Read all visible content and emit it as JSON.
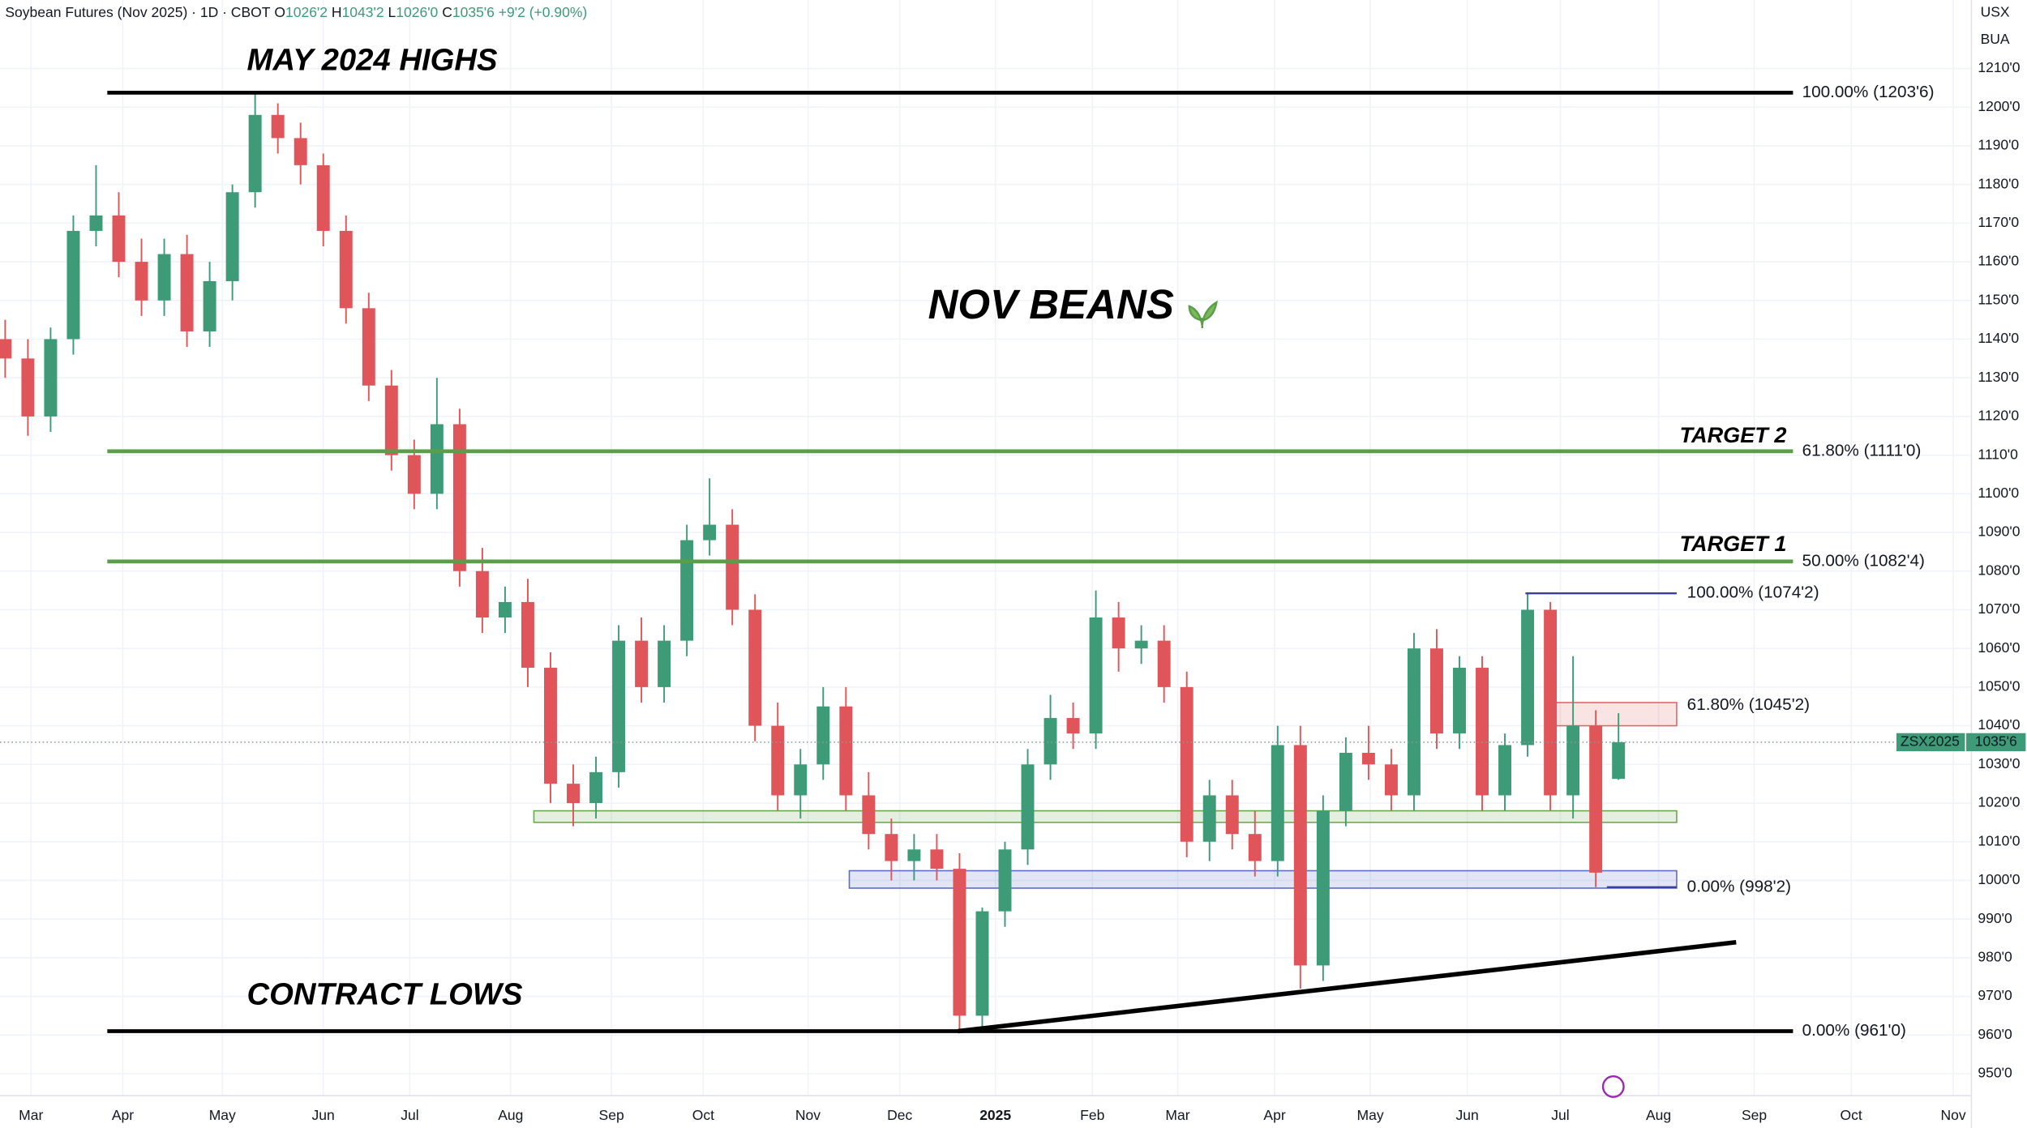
{
  "chart_data": {
    "type": "candlestick",
    "title": "Soybean Futures (Nov 2025) · 1D · CBOT",
    "header": [
      {
        "key": "O",
        "text": "1026'2"
      },
      {
        "key": "H",
        "text": "1043'2"
      },
      {
        "key": "L",
        "text": "1026'0"
      },
      {
        "key": "C",
        "text": "1035'6"
      },
      {
        "key": "",
        "text": "+9'2 (+0.90%)"
      }
    ],
    "currency": "USX",
    "unit": "BUA",
    "annotations": [
      "MAY 2024 HIGHS",
      "NOV BEANS",
      "TARGET 2",
      "TARGET 1",
      "CONTRACT LOWS"
    ],
    "up_color": "#3d9b78",
    "down_color": "#e0555a",
    "open": [
      1140,
      1135,
      1120,
      1140,
      1168,
      1172,
      1160,
      1150,
      1162,
      1142,
      1155,
      1178,
      1198,
      1192,
      1185,
      1168,
      1148,
      1128,
      1110,
      1100,
      1118,
      1080,
      1068,
      1072,
      1055,
      1025,
      1020,
      1028,
      1062,
      1050,
      1062,
      1088,
      1092,
      1070,
      1040,
      1022,
      1030,
      1045,
      1022,
      1012,
      1005,
      1008,
      1003,
      965,
      992,
      1008,
      1030,
      1042,
      1038,
      1068,
      1060,
      1062,
      1050,
      1010,
      1022,
      1012,
      1005,
      1035,
      978,
      1018,
      1033,
      1030,
      1022,
      1060,
      1038,
      1055,
      1022,
      1035,
      1070,
      1022,
      1040,
      1026.25
    ],
    "high": [
      1145,
      1140,
      1143,
      1172,
      1185,
      1178,
      1166,
      1166,
      1167,
      1160,
      1180,
      1203.75,
      1201,
      1196,
      1188,
      1172,
      1152,
      1132,
      1114,
      1130,
      1122,
      1086,
      1076,
      1078,
      1059,
      1030,
      1032,
      1066,
      1068,
      1066,
      1092,
      1104,
      1096,
      1074,
      1046,
      1034,
      1050,
      1050,
      1028,
      1016,
      1012,
      1012,
      1007,
      993,
      1010,
      1034,
      1048,
      1046,
      1075,
      1072,
      1066,
      1066,
      1054,
      1026,
      1026,
      1018,
      1040,
      1040,
      1022,
      1037,
      1040,
      1034,
      1064,
      1065,
      1058,
      1058,
      1038,
      1074.25,
      1072,
      1058,
      1044,
      1043.25
    ],
    "low": [
      1130,
      1115,
      1116,
      1136,
      1164,
      1156,
      1146,
      1146,
      1138,
      1138,
      1150,
      1174,
      1188,
      1180,
      1164,
      1144,
      1124,
      1106,
      1096,
      1096,
      1076,
      1064,
      1064,
      1050,
      1020,
      1014,
      1016,
      1024,
      1046,
      1046,
      1058,
      1084,
      1066,
      1036,
      1018,
      1016,
      1026,
      1018,
      1008,
      1000,
      1000,
      1000,
      961,
      962,
      988,
      1004,
      1026,
      1034,
      1034,
      1054,
      1056,
      1046,
      1006,
      1005,
      1008,
      1001,
      1001,
      972,
      974,
      1014,
      1026,
      1018,
      1018,
      1034,
      1034,
      1018,
      1018,
      1032,
      1018,
      1016,
      998.25,
      1026
    ],
    "close": [
      1135,
      1120,
      1140,
      1168,
      1172,
      1160,
      1150,
      1162,
      1142,
      1155,
      1178,
      1198,
      1192,
      1185,
      1168,
      1148,
      1128,
      1110,
      1100,
      1118,
      1080,
      1068,
      1072,
      1055,
      1025,
      1020,
      1028,
      1062,
      1050,
      1062,
      1088,
      1092,
      1070,
      1040,
      1022,
      1030,
      1045,
      1022,
      1012,
      1005,
      1008,
      1003,
      965,
      992,
      1008,
      1030,
      1042,
      1038,
      1068,
      1060,
      1062,
      1050,
      1010,
      1022,
      1012,
      1005,
      1035,
      978,
      1018,
      1033,
      1030,
      1022,
      1060,
      1038,
      1055,
      1022,
      1035,
      1070,
      1022,
      1040,
      1002,
      1035.75
    ],
    "last": {
      "symbol": "ZSX2025",
      "value": 1035.75,
      "label": "1035'6"
    },
    "xticks": [
      "Mar",
      "Apr",
      "May",
      "Jun",
      "Jul",
      "Aug",
      "Sep",
      "Oct",
      "Nov",
      "Dec",
      "2025",
      "Feb",
      "Mar",
      "Apr",
      "May",
      "Jun",
      "Jul",
      "Aug",
      "Sep",
      "Oct",
      "Nov"
    ],
    "ylim": [
      945,
      1215
    ],
    "yticks": [
      {
        "value": 950,
        "label": "950'0"
      },
      {
        "value": 960,
        "label": "960'0"
      },
      {
        "value": 970,
        "label": "970'0"
      },
      {
        "value": 980,
        "label": "980'0"
      },
      {
        "value": 990,
        "label": "990'0"
      },
      {
        "value": 1000,
        "label": "1000'0"
      },
      {
        "value": 1010,
        "label": "1010'0"
      },
      {
        "value": 1020,
        "label": "1020'0"
      },
      {
        "value": 1030,
        "label": "1030'0"
      },
      {
        "value": 1040,
        "label": "1040'0"
      },
      {
        "value": 1050,
        "label": "1050'0"
      },
      {
        "value": 1060,
        "label": "1060'0"
      },
      {
        "value": 1070,
        "label": "1070'0"
      },
      {
        "value": 1080,
        "label": "1080'0"
      },
      {
        "value": 1090,
        "label": "1090'0"
      },
      {
        "value": 1100,
        "label": "1100'0"
      },
      {
        "value": 1110,
        "label": "1110'0"
      },
      {
        "value": 1120,
        "label": "1120'0"
      },
      {
        "value": 1130,
        "label": "1130'0"
      },
      {
        "value": 1140,
        "label": "1140'0"
      },
      {
        "value": 1150,
        "label": "1150'0"
      },
      {
        "value": 1160,
        "label": "1160'0"
      },
      {
        "value": 1170,
        "label": "1170'0"
      },
      {
        "value": 1180,
        "label": "1180'0"
      },
      {
        "value": 1190,
        "label": "1190'0"
      },
      {
        "value": 1200,
        "label": "1200'0"
      },
      {
        "value": 1210,
        "label": "1210'0"
      }
    ],
    "grid": true,
    "levels": [
      {
        "value": 1203.75,
        "label": "100.00% (1203'6)",
        "color": "#000000",
        "line_color": "#000000"
      },
      {
        "value": 1111,
        "label": "61.80% (1111'0)",
        "color": "#6aa84f",
        "line_color": "#5a9e4a"
      },
      {
        "value": 1082.5,
        "label": "50.00% (1082'4)",
        "color": "#6aa84f",
        "line_color": "#5a9e4a"
      },
      {
        "value": 961,
        "label": "0.00% (961'0)",
        "color": "#000000",
        "line_color": "#000000"
      },
      {
        "value": 1074.25,
        "label": "100.00% (1074'2)",
        "color": "#5b5ea6",
        "line_color": "#3b3e9e"
      },
      {
        "value": 1045.25,
        "label": "61.80% (1045'2)",
        "color": "#c0504d",
        "line_color": "#e06666"
      },
      {
        "value": 998.25,
        "label": "0.00% (998'2)",
        "color": "#5b5ea6",
        "line_color": "#3b3e9e"
      }
    ],
    "zones": [
      {
        "low": 1015,
        "high": 1018,
        "color": "#6aa84f"
      },
      {
        "low": 998,
        "high": 1002.5,
        "color": "#5b6ec6"
      },
      {
        "low": 1040,
        "high": 1046,
        "color": "#e06666"
      }
    ],
    "trendline": [
      961,
      984
    ]
  }
}
